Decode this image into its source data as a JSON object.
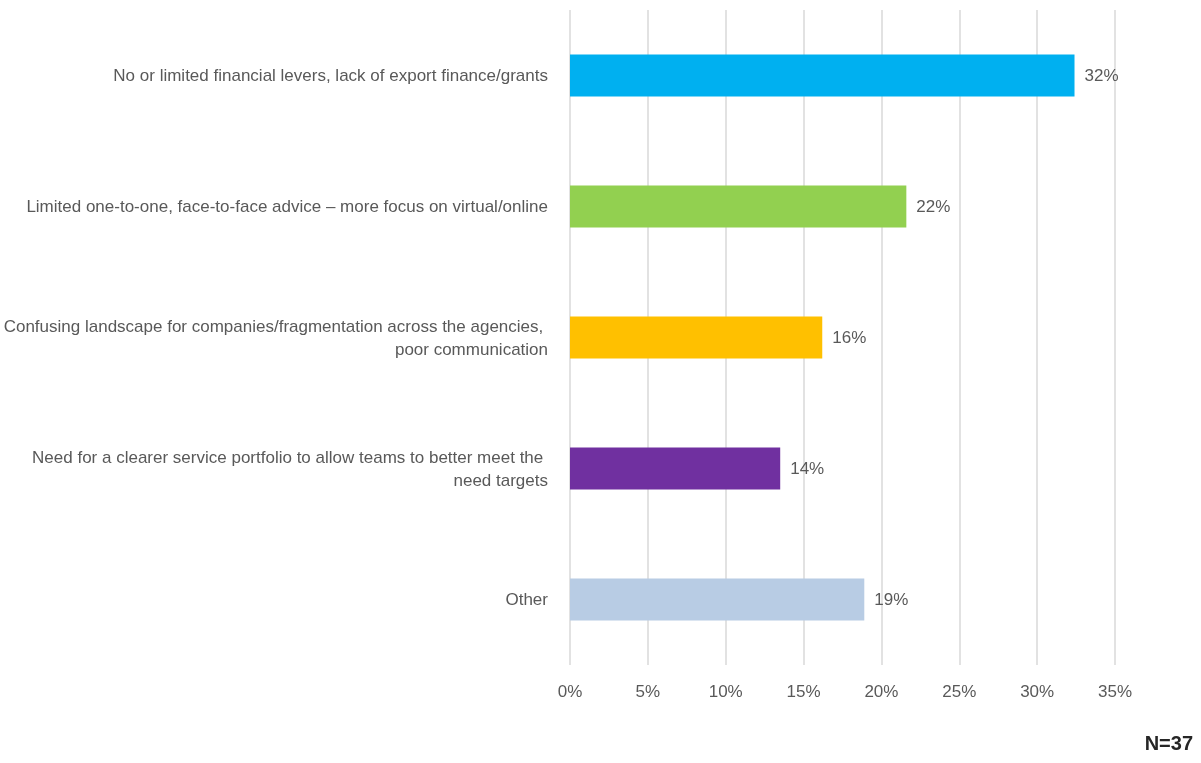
{
  "chart_data": {
    "type": "bar",
    "orientation": "horizontal",
    "categories": [
      "No or limited financial levers, lack of export finance/grants",
      "Limited one-to-one, face-to-face advice – more focus on virtual/online",
      "Confusing landscape for companies/fragmentation across the agencies, poor communication",
      "Need for a clearer service portfolio to allow teams to better meet the need targets",
      "Other"
    ],
    "values": [
      32.4,
      21.6,
      16.2,
      13.5,
      18.9
    ],
    "colors": [
      "#00b0f0",
      "#92d050",
      "#ffc000",
      "#7030a0",
      "#b8cce4"
    ],
    "value_labels": [
      "32%",
      "22%",
      "16%",
      "14%",
      "19%"
    ],
    "xlim": [
      0,
      35
    ],
    "xticks": [
      {
        "value": 0,
        "label": "0%"
      },
      {
        "value": 5,
        "label": "5%"
      },
      {
        "value": 10,
        "label": "10%"
      },
      {
        "value": 15,
        "label": "15%"
      },
      {
        "value": 20,
        "label": "20%"
      },
      {
        "value": 25,
        "label": "25%"
      },
      {
        "value": 30,
        "label": "30%"
      },
      {
        "value": 35,
        "label": "35%"
      }
    ],
    "grid": "x",
    "annotations": [
      "N=37"
    ]
  }
}
